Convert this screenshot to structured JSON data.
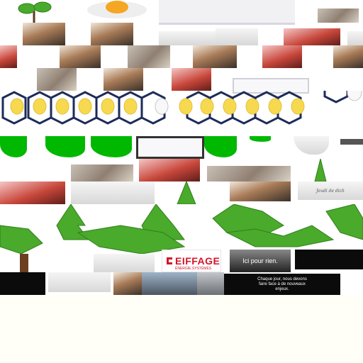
{
  "collage": {
    "logo_brand": "EIFFAGE",
    "logo_subtitle": "ÉNERGIE SYSTÈMES",
    "caption_short": "Ici pour rien.",
    "caption_long": "Chaque jour, nous devons faire face à de nouveaux enjeux.",
    "signature_note": "Jeudi de dich"
  },
  "colors": {
    "leaf_green": "#4aaa2b",
    "vivid_green": "#00b800",
    "bulb_yellow": "#f6d94f",
    "frame_navy": "#1c2b5a",
    "brand_red": "#d4142a",
    "background_cream": "#fffef7"
  }
}
